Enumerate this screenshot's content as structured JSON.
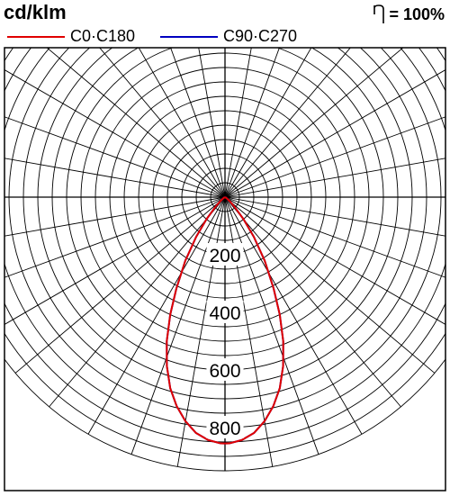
{
  "header": {
    "unit_label": "cd/klm",
    "efficiency_symbol": "η",
    "efficiency_value": "= 100%"
  },
  "legend": [
    {
      "label": "C0·C180",
      "color": "#e00000"
    },
    {
      "label": "C90·C270",
      "color": "#0000c0"
    }
  ],
  "chart_data": {
    "type": "polar",
    "title": "",
    "unit": "cd/klm",
    "radial_range": [
      0,
      950
    ],
    "radial_ring_step": 50,
    "radial_tick_labels": [
      "200",
      "400",
      "600",
      "800"
    ],
    "radial_tick_values": [
      200,
      400,
      600,
      800
    ],
    "angular_step_deg": 10,
    "grid": true,
    "angle_reference": "0° = straight down (nadir)",
    "efficiency": "100%",
    "series": [
      {
        "name": "C0·C180",
        "color": "#e00000",
        "angles_deg": [
          -90,
          -60,
          -50,
          -45,
          -40,
          -36,
          -32,
          -28,
          -25,
          -22,
          -19,
          -16,
          -13,
          -10,
          -7,
          -4,
          -1,
          0,
          1,
          4,
          7,
          10,
          13,
          16,
          19,
          22,
          25,
          28,
          32,
          36,
          40,
          45,
          50,
          60,
          90
        ],
        "values": [
          0,
          5,
          20,
          45,
          100,
          170,
          260,
          360,
          450,
          540,
          620,
          690,
          745,
          790,
          825,
          845,
          855,
          855,
          855,
          845,
          825,
          790,
          745,
          690,
          620,
          540,
          450,
          360,
          260,
          170,
          100,
          45,
          20,
          5,
          0
        ]
      },
      {
        "name": "C90·C270",
        "color": "#0000c0",
        "angles_deg": [
          -90,
          -60,
          -50,
          -45,
          -40,
          -36,
          -32,
          -28,
          -25,
          -22,
          -19,
          -16,
          -13,
          -10,
          -7,
          -4,
          -1,
          0,
          1,
          4,
          7,
          10,
          13,
          16,
          19,
          22,
          25,
          28,
          32,
          36,
          40,
          45,
          50,
          60,
          90
        ],
        "values": [
          0,
          5,
          20,
          45,
          100,
          170,
          260,
          360,
          450,
          540,
          620,
          690,
          745,
          790,
          825,
          845,
          855,
          855,
          855,
          845,
          825,
          790,
          745,
          690,
          620,
          540,
          450,
          360,
          260,
          170,
          100,
          45,
          20,
          5,
          0
        ]
      }
    ]
  }
}
